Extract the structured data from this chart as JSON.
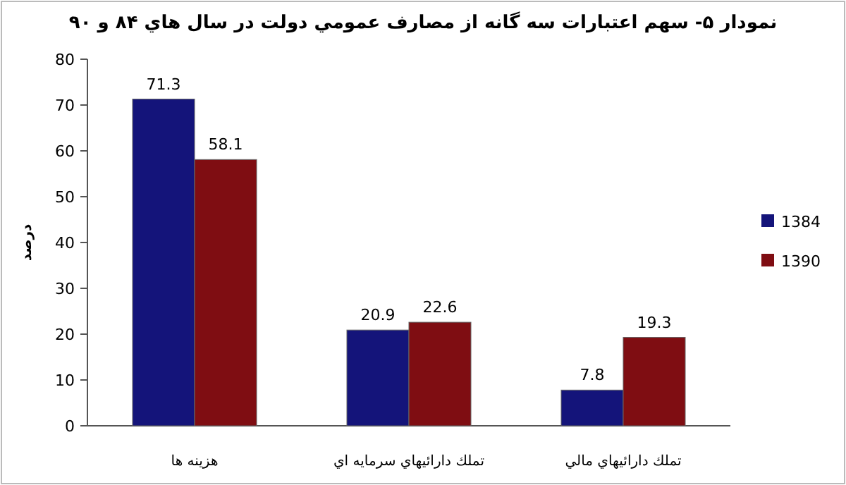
{
  "chart_data": {
    "type": "bar",
    "title": "نمودار ۵- سهم اعتبارات سه گانه از مصارف عمومي دولت در سال هاي ۸۴ و ۹۰",
    "ylabel": "درصد",
    "categories": [
      "هزينه ها",
      "تملك دارائيهاي سرمايه اي",
      "تملك دارائيهاي مالي"
    ],
    "series": [
      {
        "name": "1384",
        "color": "#14147a",
        "values": [
          71.3,
          20.9,
          7.8
        ]
      },
      {
        "name": "1390",
        "color": "#7f0d12",
        "values": [
          58.1,
          22.6,
          19.3
        ]
      }
    ],
    "ylim": [
      0,
      80
    ],
    "yticks": [
      0,
      10,
      20,
      30,
      40,
      50,
      60,
      70,
      80
    ],
    "grid": false,
    "legend": "right",
    "data_labels": true
  }
}
